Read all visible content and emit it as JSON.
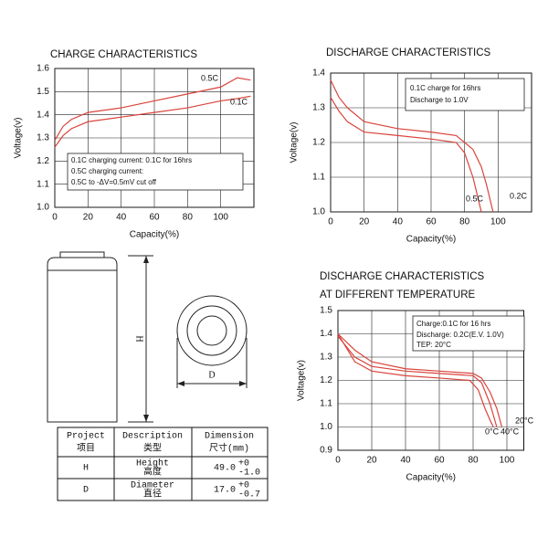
{
  "chart_data": [
    {
      "type": "line",
      "title": "CHARGE CHARACTERISTICS",
      "x_label": "Capacity(%)",
      "y_label": "Voltage(v)",
      "xlim": [
        0,
        120
      ],
      "xticks": [
        0,
        20,
        40,
        60,
        80,
        100
      ],
      "ylim": [
        1,
        1.6
      ],
      "yticks": [
        {
          "value": 1,
          "label": "1.0"
        },
        1.1,
        1.2,
        1.3,
        1.4,
        1.5,
        1.6
      ],
      "grid": true,
      "annotations": [
        "0.1C charging current: 0.1C for 16hrs",
        "0.5C charging current:",
        "0.5C    to    -ΔV=0.5mV cut off"
      ],
      "series": [
        {
          "name": "0.5C",
          "color": "#d9443c",
          "x": [
            0,
            5,
            10,
            20,
            40,
            60,
            80,
            100,
            110,
            118
          ],
          "values": [
            1.29,
            1.35,
            1.38,
            1.41,
            1.43,
            1.46,
            1.49,
            1.52,
            1.56,
            1.55
          ]
        },
        {
          "name": "0.1C",
          "color": "#d9443c",
          "x": [
            0,
            5,
            10,
            20,
            40,
            60,
            80,
            100,
            110,
            118
          ],
          "values": [
            1.26,
            1.31,
            1.34,
            1.37,
            1.39,
            1.41,
            1.43,
            1.46,
            1.47,
            1.48
          ]
        }
      ]
    },
    {
      "type": "line",
      "title": "DISCHARGE CHARACTERISTICS",
      "x_label": "Capacity(%)",
      "y_label": "Voltage(v)",
      "xlim": [
        0,
        120
      ],
      "xticks": [
        0,
        20,
        40,
        60,
        80,
        100
      ],
      "ylim": [
        1,
        1.4
      ],
      "yticks": [
        {
          "value": 1,
          "label": "1.0"
        },
        1.1,
        1.2,
        1.3,
        1.4
      ],
      "grid": true,
      "annotations": [
        "0.1C charge for 16hrs",
        "Discharge to 1.0V"
      ],
      "series": [
        {
          "name": "0.5C",
          "color": "#d9443c",
          "x": [
            0,
            5,
            10,
            20,
            40,
            60,
            75,
            80,
            85,
            88,
            90
          ],
          "values": [
            1.33,
            1.29,
            1.26,
            1.23,
            1.22,
            1.21,
            1.2,
            1.17,
            1.1,
            1.04,
            1
          ]
        },
        {
          "name": "0.2C",
          "color": "#d9443c",
          "x": [
            0,
            5,
            10,
            20,
            40,
            60,
            75,
            85,
            90,
            93,
            97
          ],
          "values": [
            1.38,
            1.33,
            1.3,
            1.26,
            1.24,
            1.23,
            1.22,
            1.18,
            1.13,
            1.08,
            1
          ]
        }
      ]
    },
    {
      "type": "line",
      "title": "DISCHARGE CHARACTERISTICS",
      "subtitle": "AT DIFFERENT TEMPERATURE",
      "x_label": "Capacity(%)",
      "y_label": "Voltage(v)",
      "xlim": [
        0,
        110
      ],
      "xticks": [
        0,
        20,
        40,
        60,
        80,
        100
      ],
      "ylim": [
        0.9,
        1.5
      ],
      "yticks": [
        0.9,
        {
          "value": 1,
          "label": "1.0"
        },
        1.1,
        1.2,
        1.3,
        1.4,
        1.5
      ],
      "grid": true,
      "annotations": [
        "Charge:0.1C for 16 hrs",
        "Discharge: 0.2C(E.V. 1.0V)",
        "TEP: 20°C"
      ],
      "series": [
        {
          "name": "0°C",
          "color": "#d9443c",
          "x": [
            0,
            10,
            20,
            40,
            60,
            78,
            83,
            87,
            90,
            92
          ],
          "values": [
            1.4,
            1.28,
            1.24,
            1.22,
            1.21,
            1.2,
            1.16,
            1.08,
            1.03,
            1
          ]
        },
        {
          "name": "40°C",
          "color": "#d9443c",
          "x": [
            0,
            10,
            20,
            40,
            60,
            80,
            85,
            90,
            92,
            94
          ],
          "values": [
            1.39,
            1.3,
            1.26,
            1.24,
            1.23,
            1.22,
            1.19,
            1.1,
            1.05,
            1
          ]
        },
        {
          "name": "20°C",
          "color": "#d9443c",
          "x": [
            0,
            10,
            20,
            40,
            60,
            80,
            85,
            90,
            94,
            97
          ],
          "values": [
            1.4,
            1.33,
            1.28,
            1.25,
            1.24,
            1.23,
            1.21,
            1.15,
            1.08,
            1
          ]
        }
      ]
    }
  ],
  "diagram": {
    "height_label": "H",
    "diameter_label": "D"
  },
  "table": {
    "header": [
      [
        "Project",
        "项目"
      ],
      [
        "Description",
        "类型"
      ],
      [
        "Dimension",
        "尺寸(mm)"
      ]
    ],
    "rows": [
      {
        "project": "H",
        "description": [
          "Height",
          "高度"
        ],
        "dimension": "49.0",
        "upper": "+0",
        "lower": "-1.0"
      },
      {
        "project": "D",
        "description": [
          "Diameter",
          "直径"
        ],
        "dimension": "17.0",
        "upper": "+0",
        "lower": "-0.7"
      }
    ]
  }
}
